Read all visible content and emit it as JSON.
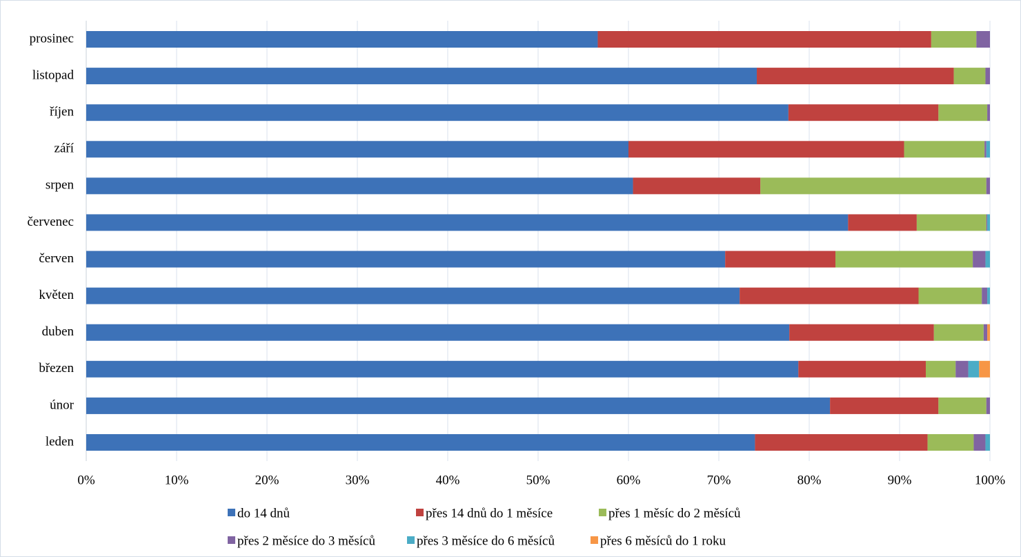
{
  "chart_data": {
    "type": "stacked_bar_horizontal",
    "categories": [
      "leden",
      "únor",
      "březen",
      "duben",
      "květen",
      "červen",
      "červenec",
      "srpen",
      "září",
      "říjen",
      "listopad",
      "prosinec"
    ],
    "series": [
      {
        "name": "do 14 dnů",
        "color": "#3d72b8",
        "values": [
          74.0,
          82.3,
          78.8,
          77.8,
          72.3,
          70.7,
          84.3,
          60.5,
          60.0,
          77.7,
          74.2,
          56.6
        ]
      },
      {
        "name": "přes 14 dnů do 1 měsíce",
        "color": "#c0423f",
        "values": [
          19.1,
          12.0,
          14.1,
          16.0,
          19.8,
          12.2,
          7.6,
          14.1,
          30.5,
          16.6,
          21.8,
          36.9
        ]
      },
      {
        "name": "přes 1 měsíc do 2 měsíců",
        "color": "#9bbb59",
        "values": [
          5.1,
          5.3,
          3.3,
          5.5,
          7.0,
          15.2,
          7.7,
          25.0,
          8.9,
          5.4,
          3.5,
          5.0
        ]
      },
      {
        "name": "přes 2 měsíce do 3 měsíců",
        "color": "#8064a2",
        "values": [
          1.3,
          0.4,
          1.4,
          0.4,
          0.6,
          1.4,
          0.1,
          0.4,
          0.2,
          0.3,
          0.5,
          1.5
        ]
      },
      {
        "name": "přes 3 měsíce do 6 měsíců",
        "color": "#4bacc6",
        "values": [
          0.5,
          0,
          1.2,
          0,
          0.3,
          0.5,
          0.3,
          0,
          0.4,
          0,
          0,
          0
        ]
      },
      {
        "name": "přes 6 měsíců do 1 roku",
        "color": "#f79646",
        "values": [
          0,
          0,
          1.2,
          0.3,
          0,
          0,
          0,
          0,
          0,
          0,
          0,
          0
        ]
      }
    ],
    "xlim": [
      0,
      100
    ],
    "xticks": [
      {
        "value": 0,
        "label": "0%"
      },
      {
        "value": 10,
        "label": "10%"
      },
      {
        "value": 20,
        "label": "20%"
      },
      {
        "value": 30,
        "label": "30%"
      },
      {
        "value": 40,
        "label": "40%"
      },
      {
        "value": 50,
        "label": "50%"
      },
      {
        "value": 60,
        "label": "60%"
      },
      {
        "value": 70,
        "label": "70%"
      },
      {
        "value": 80,
        "label": "80%"
      },
      {
        "value": 90,
        "label": "90%"
      },
      {
        "value": 100,
        "label": "100%"
      }
    ],
    "grid": true,
    "legend": "bottom"
  }
}
